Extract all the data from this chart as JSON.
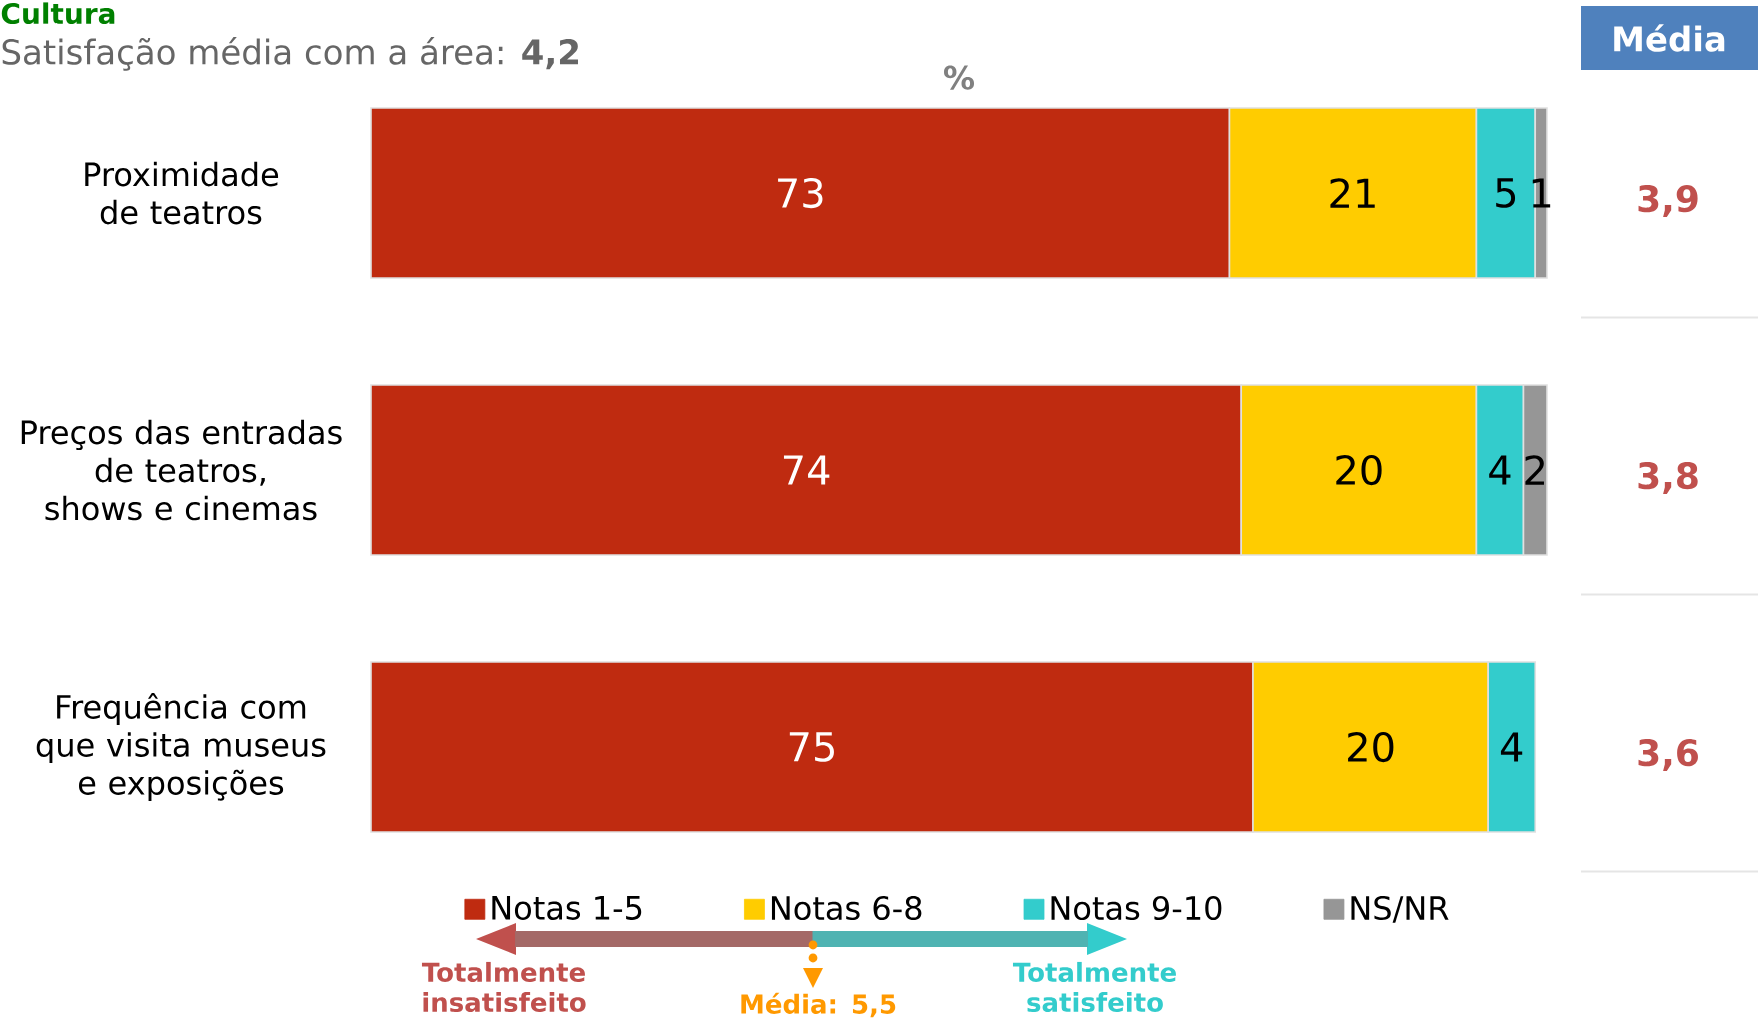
{
  "chart_data": {
    "type": "bar",
    "orientation": "horizontal",
    "stacked": true,
    "title": "Cultura",
    "subtitle": "Satisfação média com a área: **4,2**",
    "xlabel": "%",
    "categories": [
      "Proximidade de teatros",
      "Preços das entradas de teatros, shows e cinemas",
      "Frequência com que visita museus e exposições"
    ],
    "series": [
      {
        "name": "Notas 1-5",
        "color": "#bf2b10",
        "values": [
          73,
          74,
          75
        ]
      },
      {
        "name": "Notas 6-8",
        "color": "#ffcc00",
        "values": [
          21,
          20,
          20
        ]
      },
      {
        "name": "Notas 9-10",
        "color": "#33cccc",
        "values": [
          5,
          4,
          4
        ]
      },
      {
        "name": "NS/NR",
        "color": "#969696",
        "values": [
          1,
          2,
          null
        ]
      }
    ],
    "xlim": [
      0,
      100
    ],
    "data_labels": true,
    "legend": "bottom",
    "annotations": [
      "Média",
      "3,9",
      "3,8",
      "3,6",
      "Totalmente insatisfeito",
      "Média: 5,5",
      "Totalmente satisfeito"
    ]
  }
}
